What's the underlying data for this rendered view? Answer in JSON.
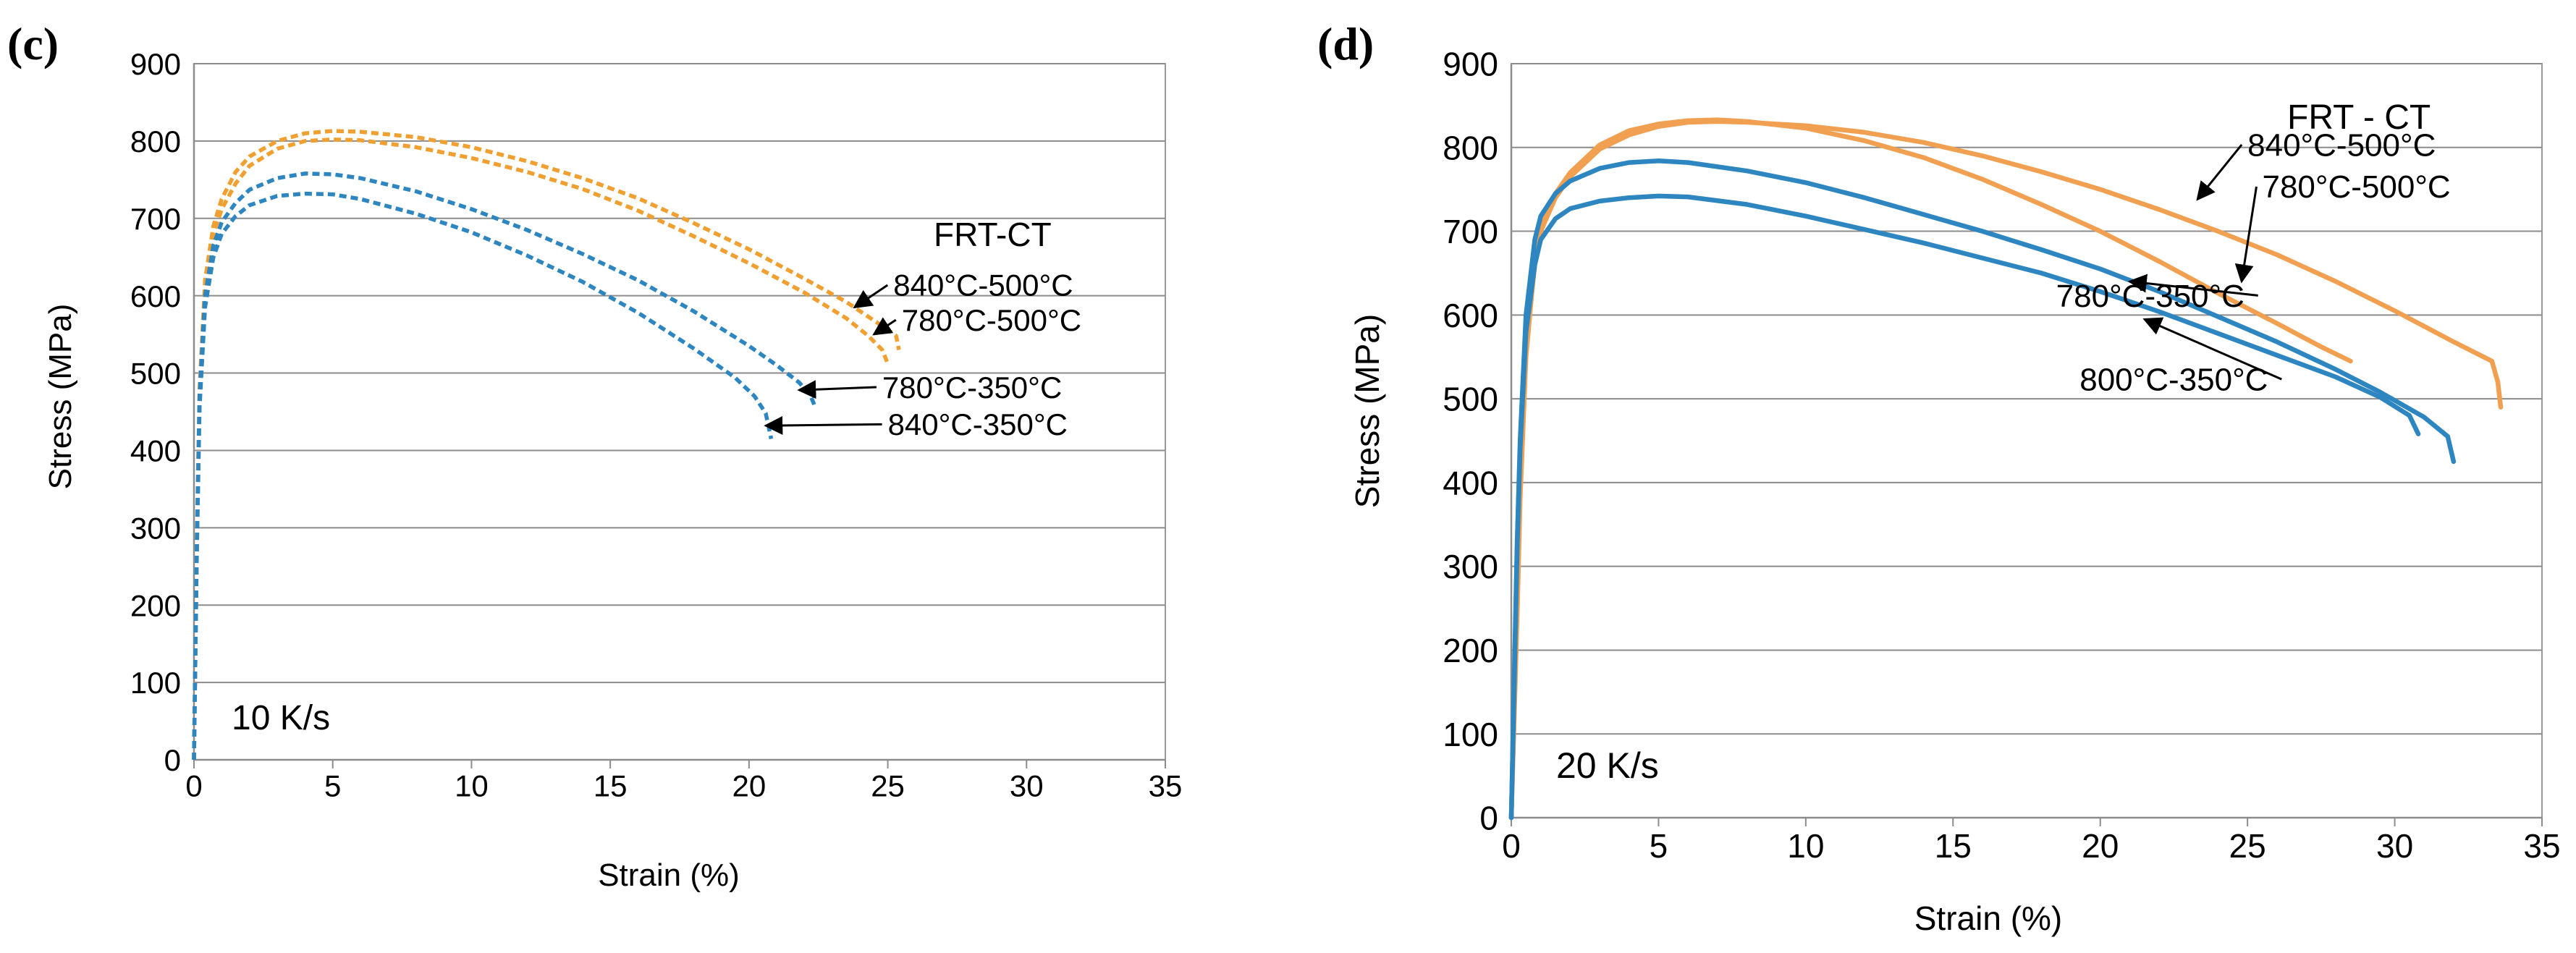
{
  "chart_data": [
    {
      "type": "line",
      "panel_label": "(c)",
      "annotation": "10 K/s",
      "legend_title": "FRT-CT",
      "xlabel": "Strain (%)",
      "ylabel": "Stress (MPa)",
      "xlim": [
        0,
        35
      ],
      "ylim": [
        0,
        900
      ],
      "x_ticks": [
        0,
        5,
        10,
        15,
        20,
        25,
        30,
        35
      ],
      "y_ticks": [
        0,
        100,
        200,
        300,
        400,
        500,
        600,
        700,
        800,
        900
      ],
      "grid": "horizontal",
      "line_style": "dashed",
      "series": [
        {
          "name": "840°C-500°C",
          "color": "#F0A030",
          "points": [
            [
              0,
              0
            ],
            [
              0.1,
              280
            ],
            [
              0.2,
              480
            ],
            [
              0.4,
              620
            ],
            [
              0.7,
              690
            ],
            [
              1.0,
              725
            ],
            [
              1.5,
              760
            ],
            [
              2.0,
              780
            ],
            [
              3.0,
              800
            ],
            [
              4.0,
              810
            ],
            [
              5.0,
              813
            ],
            [
              6.0,
              812
            ],
            [
              8.0,
              805
            ],
            [
              10.0,
              792
            ],
            [
              12.0,
              774
            ],
            [
              14.0,
              752
            ],
            [
              16.0,
              726
            ],
            [
              18.0,
              694
            ],
            [
              20.0,
              660
            ],
            [
              22.0,
              622
            ],
            [
              23.5,
              592
            ],
            [
              24.5,
              568
            ],
            [
              25.0,
              556
            ],
            [
              25.3,
              548
            ],
            [
              25.4,
              530
            ]
          ]
        },
        {
          "name": "780°C-500°C",
          "color": "#F0A030",
          "points": [
            [
              0,
              0
            ],
            [
              0.1,
              260
            ],
            [
              0.2,
              460
            ],
            [
              0.4,
              610
            ],
            [
              0.7,
              680
            ],
            [
              1.0,
              712
            ],
            [
              1.5,
              745
            ],
            [
              2.0,
              768
            ],
            [
              3.0,
              790
            ],
            [
              4.0,
              800
            ],
            [
              5.0,
              802
            ],
            [
              6.0,
              801
            ],
            [
              8.0,
              792
            ],
            [
              10.0,
              778
            ],
            [
              12.0,
              760
            ],
            [
              14.0,
              738
            ],
            [
              16.0,
              710
            ],
            [
              18.0,
              677
            ],
            [
              20.0,
              642
            ],
            [
              22.0,
              604
            ],
            [
              23.5,
              571
            ],
            [
              24.3,
              548
            ],
            [
              24.8,
              530
            ],
            [
              25.0,
              512
            ]
          ]
        },
        {
          "name": "780°C-350°C",
          "color": "#2E86C1",
          "points": [
            [
              0,
              0
            ],
            [
              0.1,
              270
            ],
            [
              0.2,
              470
            ],
            [
              0.4,
              600
            ],
            [
              0.7,
              665
            ],
            [
              1.0,
              695
            ],
            [
              1.5,
              720
            ],
            [
              2.0,
              737
            ],
            [
              3.0,
              752
            ],
            [
              4.0,
              758
            ],
            [
              5.0,
              757
            ],
            [
              6.0,
              752
            ],
            [
              8.0,
              735
            ],
            [
              10.0,
              712
            ],
            [
              12.0,
              685
            ],
            [
              14.0,
              654
            ],
            [
              16.0,
              620
            ],
            [
              18.0,
              580
            ],
            [
              20.0,
              535
            ],
            [
              21.0,
              510
            ],
            [
              21.8,
              488
            ],
            [
              22.2,
              472
            ],
            [
              22.4,
              455
            ]
          ]
        },
        {
          "name": "840°C-350°C",
          "color": "#2E86C1",
          "points": [
            [
              0,
              0
            ],
            [
              0.1,
              260
            ],
            [
              0.2,
              455
            ],
            [
              0.4,
              585
            ],
            [
              0.7,
              650
            ],
            [
              1.0,
              680
            ],
            [
              1.5,
              703
            ],
            [
              2.0,
              717
            ],
            [
              3.0,
              729
            ],
            [
              4.0,
              732
            ],
            [
              5.0,
              731
            ],
            [
              6.0,
              725
            ],
            [
              8.0,
              706
            ],
            [
              10.0,
              682
            ],
            [
              12.0,
              652
            ],
            [
              14.0,
              618
            ],
            [
              16.0,
              578
            ],
            [
              18.0,
              532
            ],
            [
              19.5,
              494
            ],
            [
              20.2,
              470
            ],
            [
              20.6,
              448
            ],
            [
              20.8,
              415
            ]
          ]
        }
      ],
      "annotations": [
        {
          "text": "840°C-500°C",
          "target": [
            23.8,
            585
          ],
          "label": [
            25.2,
            600
          ]
        },
        {
          "text": "780°C-500°C",
          "target": [
            24.5,
            550
          ],
          "label": [
            25.5,
            555
          ]
        },
        {
          "text": "780°C-350°C",
          "target": [
            21.8,
            478
          ],
          "label": [
            24.8,
            468
          ]
        },
        {
          "text": "840°C-350°C",
          "target": [
            20.6,
            432
          ],
          "label": [
            25.0,
            420
          ]
        }
      ]
    },
    {
      "type": "line",
      "panel_label": "(d)",
      "annotation": "20 K/s",
      "legend_title": "FRT - CT",
      "xlabel": "Strain (%)",
      "ylabel": "Stress (MPa)",
      "xlim": [
        0,
        35
      ],
      "ylim": [
        0,
        900
      ],
      "x_ticks": [
        0,
        5,
        10,
        15,
        20,
        25,
        30,
        35
      ],
      "y_ticks": [
        0,
        100,
        200,
        300,
        400,
        500,
        600,
        700,
        800,
        900
      ],
      "grid": "horizontal",
      "line_style": "solid",
      "series": [
        {
          "name": "840°C-500°C",
          "color": "#F0A050",
          "points": [
            [
              0,
              0
            ],
            [
              0.1,
              130
            ],
            [
              0.2,
              260
            ],
            [
              0.3,
              400
            ],
            [
              0.5,
              560
            ],
            [
              0.8,
              660
            ],
            [
              1.0,
              700
            ],
            [
              1.5,
              740
            ],
            [
              2.0,
              765
            ],
            [
              3.0,
              798
            ],
            [
              4.0,
              815
            ],
            [
              5.0,
              825
            ],
            [
              6.0,
              830
            ],
            [
              7.0,
              831
            ],
            [
              8.0,
              830
            ],
            [
              10.0,
              826
            ],
            [
              12.0,
              818
            ],
            [
              14.0,
              806
            ],
            [
              16.0,
              790
            ],
            [
              18.0,
              771
            ],
            [
              20.0,
              750
            ],
            [
              22.0,
              726
            ],
            [
              24.0,
              700
            ],
            [
              26.0,
              672
            ],
            [
              28.0,
              640
            ],
            [
              30.0,
              605
            ],
            [
              32.0,
              568
            ],
            [
              33.3,
              545
            ],
            [
              33.5,
              520
            ],
            [
              33.6,
              490
            ]
          ]
        },
        {
          "name": "780°C-500°C",
          "color": "#F0A050",
          "points": [
            [
              0,
              0
            ],
            [
              0.1,
              120
            ],
            [
              0.2,
              240
            ],
            [
              0.3,
              380
            ],
            [
              0.5,
              550
            ],
            [
              0.8,
              665
            ],
            [
              1.0,
              705
            ],
            [
              1.5,
              745
            ],
            [
              2.0,
              770
            ],
            [
              3.0,
              803
            ],
            [
              4.0,
              820
            ],
            [
              5.0,
              828
            ],
            [
              6.0,
              832
            ],
            [
              7.0,
              833
            ],
            [
              8.0,
              831
            ],
            [
              10.0,
              823
            ],
            [
              12.0,
              808
            ],
            [
              14.0,
              788
            ],
            [
              16.0,
              762
            ],
            [
              18.0,
              732
            ],
            [
              20.0,
              700
            ],
            [
              22.0,
              664
            ],
            [
              24.0,
              626
            ],
            [
              26.0,
              590
            ],
            [
              27.5,
              562
            ],
            [
              28.5,
              545
            ]
          ]
        },
        {
          "name": "780°C-350°C",
          "color": "#2E86C1",
          "points": [
            [
              0,
              0
            ],
            [
              0.1,
              160
            ],
            [
              0.2,
              320
            ],
            [
              0.3,
              440
            ],
            [
              0.5,
              580
            ],
            [
              0.8,
              660
            ],
            [
              1.0,
              690
            ],
            [
              1.5,
              715
            ],
            [
              2.0,
              727
            ],
            [
              3.0,
              736
            ],
            [
              4.0,
              740
            ],
            [
              5.0,
              742
            ],
            [
              6.0,
              741
            ],
            [
              8.0,
              732
            ],
            [
              10.0,
              718
            ],
            [
              12.0,
              702
            ],
            [
              14.0,
              686
            ],
            [
              16.0,
              668
            ],
            [
              18.0,
              650
            ],
            [
              20.0,
              628
            ],
            [
              22.0,
              604
            ],
            [
              24.0,
              578
            ],
            [
              26.0,
              552
            ],
            [
              28.0,
              526
            ],
            [
              29.5,
              502
            ],
            [
              30.5,
              480
            ],
            [
              30.8,
              458
            ]
          ]
        },
        {
          "name": "800°C-350°C",
          "color": "#2E86C1",
          "points": [
            [
              0,
              0
            ],
            [
              0.1,
              170
            ],
            [
              0.2,
              330
            ],
            [
              0.3,
              450
            ],
            [
              0.5,
              600
            ],
            [
              0.8,
              690
            ],
            [
              1.0,
              718
            ],
            [
              1.5,
              745
            ],
            [
              2.0,
              760
            ],
            [
              3.0,
              775
            ],
            [
              4.0,
              782
            ],
            [
              5.0,
              784
            ],
            [
              6.0,
              782
            ],
            [
              8.0,
              772
            ],
            [
              10.0,
              758
            ],
            [
              12.0,
              740
            ],
            [
              14.0,
              720
            ],
            [
              16.0,
              700
            ],
            [
              18.0,
              678
            ],
            [
              20.0,
              655
            ],
            [
              22.0,
              628
            ],
            [
              24.0,
              598
            ],
            [
              26.0,
              568
            ],
            [
              28.0,
              535
            ],
            [
              29.5,
              508
            ],
            [
              31.0,
              478
            ],
            [
              31.8,
              455
            ],
            [
              32.0,
              425
            ]
          ]
        }
      ],
      "annotations": [
        {
          "text": "840°C-500°C",
          "target": [
            23.3,
            738
          ],
          "label": [
            25.0,
            790
          ]
        },
        {
          "text": "780°C-500°C",
          "target": [
            24.8,
            640
          ],
          "label": [
            25.5,
            740
          ]
        },
        {
          "text": "780°C-350°C",
          "target": [
            21.0,
            640
          ],
          "label": [
            18.5,
            610
          ]
        },
        {
          "text": "800°C-350°C",
          "target": [
            21.5,
            595
          ],
          "label": [
            19.3,
            510
          ]
        }
      ]
    }
  ]
}
